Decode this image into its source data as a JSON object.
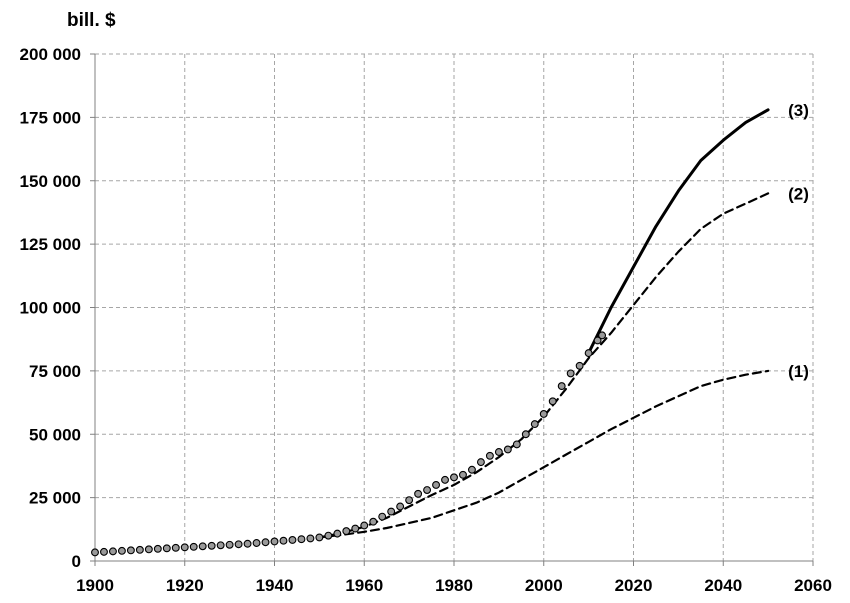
{
  "chart_data": {
    "type": "line",
    "ylabel": "bill. $",
    "xlim": [
      1900,
      2060
    ],
    "ylim": [
      0,
      200000
    ],
    "x_ticks": [
      1900,
      1920,
      1940,
      1960,
      1980,
      2000,
      2020,
      2040,
      2060
    ],
    "y_ticks": [
      0,
      25000,
      50000,
      75000,
      100000,
      125000,
      150000,
      175000,
      200000
    ],
    "x_tick_labels": [
      "1900",
      "1920",
      "1940",
      "1960",
      "1980",
      "2000",
      "2020",
      "2040",
      "2060"
    ],
    "y_tick_labels": [
      "0",
      "25 000",
      "50 000",
      "75 000",
      "100 000",
      "125 000",
      "150 000",
      "175 000",
      "200 000"
    ],
    "grid": true,
    "series": [
      {
        "style": "markers",
        "x": [
          1900,
          1902,
          1904,
          1906,
          1908,
          1910,
          1912,
          1914,
          1916,
          1918,
          1920,
          1922,
          1924,
          1926,
          1928,
          1930,
          1932,
          1934,
          1936,
          1938,
          1940,
          1942,
          1944,
          1946,
          1948,
          1950,
          1952,
          1954,
          1956,
          1958,
          1960,
          1962,
          1964,
          1966,
          1968,
          1970,
          1972,
          1974,
          1976,
          1978,
          1980,
          1982,
          1984,
          1986,
          1988,
          1990,
          1992,
          1994,
          1996,
          1998,
          2000,
          2002,
          2004,
          2006,
          2008,
          2010,
          2012,
          2013
        ],
        "values": [
          3400,
          3600,
          3800,
          4000,
          4200,
          4400,
          4600,
          4800,
          5000,
          5200,
          5400,
          5600,
          5800,
          6000,
          6200,
          6400,
          6600,
          6800,
          7100,
          7400,
          7700,
          8000,
          8300,
          8600,
          8900,
          9300,
          10000,
          10800,
          11800,
          12800,
          14000,
          15500,
          17500,
          19500,
          21500,
          24000,
          26500,
          28000,
          30000,
          32000,
          33000,
          34000,
          36000,
          39000,
          41500,
          43000,
          44000,
          46000,
          50000,
          54000,
          58000,
          63000,
          69000,
          74000,
          77000,
          82000,
          87000,
          89000
        ]
      },
      {
        "label": "(1)",
        "style": "dashed",
        "x": [
          1950,
          1955,
          1960,
          1965,
          1970,
          1975,
          1980,
          1985,
          1990,
          1995,
          2000,
          2005,
          2010,
          2015,
          2020,
          2025,
          2030,
          2035,
          2040,
          2045,
          2050
        ],
        "values": [
          9300,
          10300,
          11500,
          13000,
          15000,
          17000,
          20000,
          23000,
          27000,
          32000,
          37000,
          42000,
          47000,
          52000,
          56500,
          61000,
          65000,
          69000,
          71500,
          73500,
          75000
        ]
      },
      {
        "label": "(2)",
        "style": "dashed",
        "x": [
          1950,
          1955,
          1960,
          1965,
          1970,
          1975,
          1980,
          1985,
          1990,
          1995,
          2000,
          2005,
          2010,
          2015,
          2020,
          2025,
          2030,
          2035,
          2040,
          2045,
          2050
        ],
        "values": [
          9300,
          11000,
          13500,
          17000,
          21500,
          26000,
          30000,
          35000,
          41000,
          48000,
          57000,
          68000,
          80000,
          90000,
          101000,
          112000,
          122000,
          131000,
          137000,
          141000,
          145000
        ]
      },
      {
        "label": "(3)",
        "style": "solid",
        "x": [
          2010,
          2015,
          2020,
          2025,
          2030,
          2035,
          2040,
          2045,
          2050
        ],
        "values": [
          82000,
          100000,
          116000,
          132000,
          146000,
          158000,
          166000,
          173000,
          178000
        ]
      }
    ]
  }
}
